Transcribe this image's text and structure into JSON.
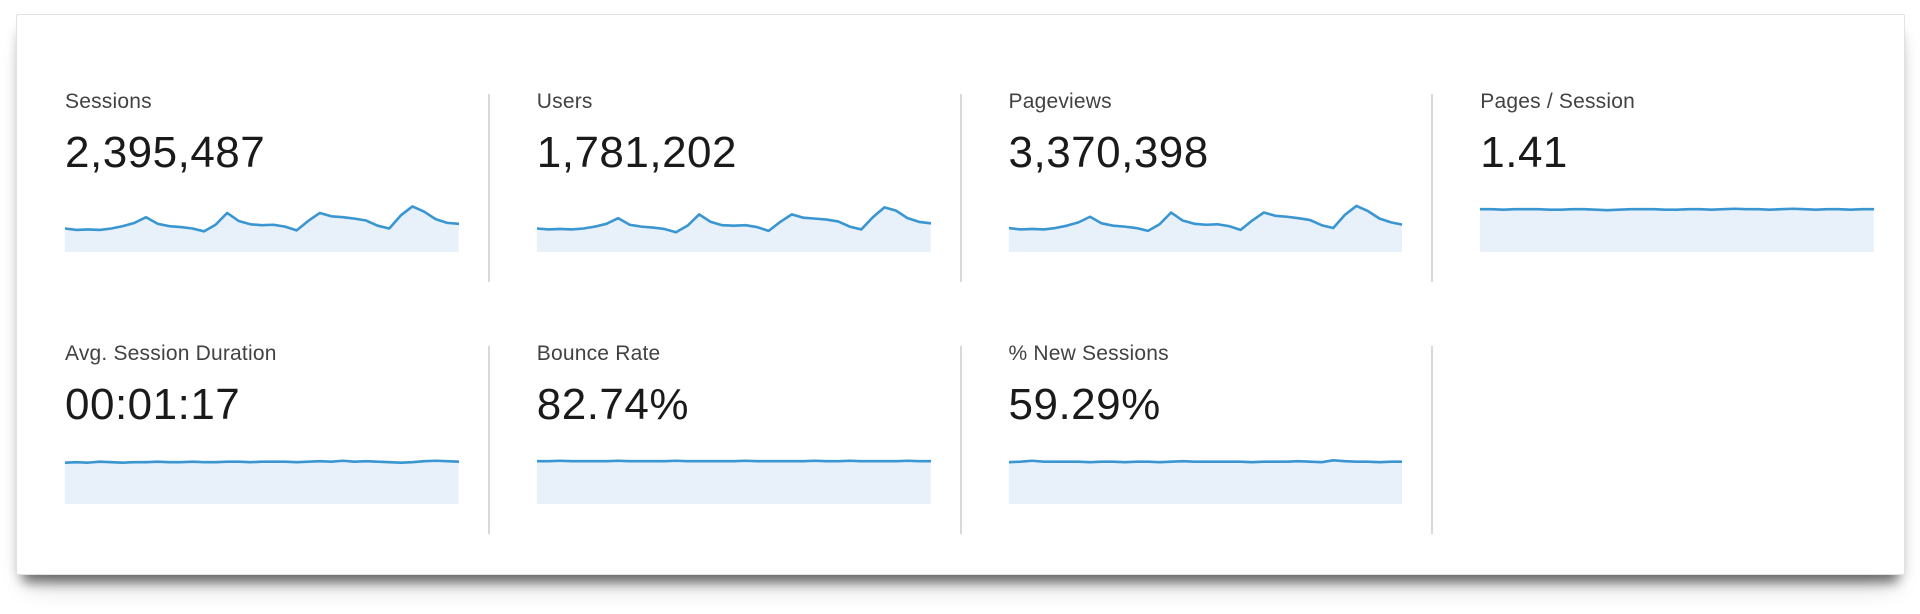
{
  "panel": {
    "background": "#ffffff",
    "border_color": "#e2e2e2"
  },
  "theme": {
    "line_color": "#3a96d1",
    "fill_color": "#e8f1fa",
    "divider_color": "#d8d8d8",
    "label_color": "#424242",
    "value_color": "#1a1a1a"
  },
  "rows": [
    {
      "cards": [
        {
          "label": "Sessions",
          "value": "2,395,487"
        },
        {
          "label": "Users",
          "value": "1,781,202"
        },
        {
          "label": "Pageviews",
          "value": "3,370,398"
        },
        {
          "label": "Pages / Session",
          "value": "1.41"
        }
      ]
    },
    {
      "cards": [
        {
          "label": "Avg. Session Duration",
          "value": "00:01:17"
        },
        {
          "label": "Bounce Rate",
          "value": "82.74%"
        },
        {
          "label": "% New Sessions",
          "value": "59.29%"
        }
      ]
    }
  ],
  "chart_data": [
    {
      "type": "area",
      "metric": "Sessions",
      "display_value": "2,395,487",
      "note": "unlabeled daily sparkline, values normalized 0-1 (estimated from pixels)",
      "values": [
        0.5,
        0.47,
        0.48,
        0.47,
        0.5,
        0.55,
        0.62,
        0.74,
        0.6,
        0.55,
        0.53,
        0.5,
        0.44,
        0.58,
        0.83,
        0.66,
        0.59,
        0.57,
        0.58,
        0.54,
        0.46,
        0.66,
        0.83,
        0.76,
        0.74,
        0.71,
        0.67,
        0.56,
        0.5,
        0.78,
        0.97,
        0.86,
        0.7,
        0.62,
        0.6
      ]
    },
    {
      "type": "area",
      "metric": "Users",
      "display_value": "1,781,202",
      "note": "unlabeled daily sparkline, values normalized 0-1 (estimated from pixels)",
      "values": [
        0.5,
        0.48,
        0.49,
        0.48,
        0.5,
        0.54,
        0.6,
        0.72,
        0.58,
        0.54,
        0.52,
        0.49,
        0.42,
        0.56,
        0.8,
        0.64,
        0.57,
        0.56,
        0.57,
        0.53,
        0.45,
        0.64,
        0.8,
        0.73,
        0.71,
        0.69,
        0.65,
        0.54,
        0.48,
        0.74,
        0.95,
        0.88,
        0.72,
        0.64,
        0.61
      ]
    },
    {
      "type": "area",
      "metric": "Pageviews",
      "display_value": "3,370,398",
      "note": "unlabeled daily sparkline, values normalized 0-1 (estimated from pixels)",
      "values": [
        0.51,
        0.48,
        0.49,
        0.48,
        0.51,
        0.56,
        0.63,
        0.75,
        0.61,
        0.56,
        0.54,
        0.51,
        0.45,
        0.59,
        0.84,
        0.67,
        0.6,
        0.58,
        0.59,
        0.55,
        0.47,
        0.67,
        0.84,
        0.77,
        0.75,
        0.72,
        0.68,
        0.57,
        0.51,
        0.79,
        0.98,
        0.87,
        0.71,
        0.63,
        0.58
      ]
    },
    {
      "type": "area",
      "metric": "Pages / Session",
      "display_value": "1.41",
      "note": "nearly flat sparkline near top of fill",
      "values": [
        0.91,
        0.91,
        0.9,
        0.91,
        0.91,
        0.91,
        0.9,
        0.9,
        0.91,
        0.91,
        0.9,
        0.89,
        0.9,
        0.91,
        0.91,
        0.91,
        0.9,
        0.9,
        0.91,
        0.91,
        0.9,
        0.91,
        0.92,
        0.91,
        0.91,
        0.9,
        0.91,
        0.92,
        0.91,
        0.9,
        0.91,
        0.91,
        0.9,
        0.91,
        0.91
      ]
    },
    {
      "type": "area",
      "metric": "Avg. Session Duration",
      "display_value": "00:01:17",
      "note": "nearly flat sparkline with slight upward drift",
      "values": [
        0.88,
        0.89,
        0.88,
        0.9,
        0.89,
        0.88,
        0.89,
        0.89,
        0.9,
        0.89,
        0.89,
        0.9,
        0.89,
        0.89,
        0.9,
        0.9,
        0.89,
        0.9,
        0.9,
        0.9,
        0.89,
        0.9,
        0.91,
        0.9,
        0.92,
        0.9,
        0.91,
        0.9,
        0.89,
        0.88,
        0.89,
        0.91,
        0.92,
        0.91,
        0.9
      ]
    },
    {
      "type": "area",
      "metric": "Bounce Rate",
      "display_value": "82.74%",
      "note": "nearly flat sparkline",
      "values": [
        0.91,
        0.91,
        0.92,
        0.91,
        0.91,
        0.91,
        0.91,
        0.92,
        0.91,
        0.91,
        0.91,
        0.91,
        0.92,
        0.91,
        0.91,
        0.91,
        0.91,
        0.91,
        0.92,
        0.91,
        0.91,
        0.91,
        0.91,
        0.91,
        0.92,
        0.91,
        0.91,
        0.92,
        0.91,
        0.91,
        0.91,
        0.91,
        0.92,
        0.91,
        0.91
      ]
    },
    {
      "type": "area",
      "metric": "% New Sessions",
      "display_value": "59.29%",
      "note": "nearly flat sparkline with small bumps near start and right end",
      "values": [
        0.89,
        0.9,
        0.92,
        0.9,
        0.9,
        0.9,
        0.9,
        0.89,
        0.9,
        0.9,
        0.89,
        0.9,
        0.9,
        0.89,
        0.9,
        0.91,
        0.9,
        0.9,
        0.9,
        0.9,
        0.9,
        0.89,
        0.9,
        0.9,
        0.9,
        0.91,
        0.9,
        0.89,
        0.93,
        0.91,
        0.9,
        0.9,
        0.89,
        0.9,
        0.9
      ]
    }
  ]
}
